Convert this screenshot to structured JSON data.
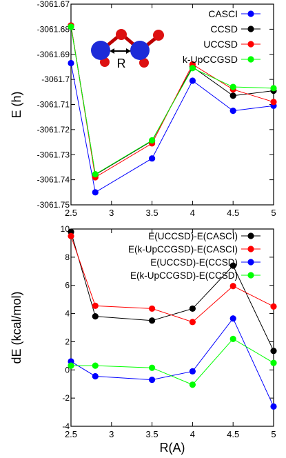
{
  "chart_data": [
    {
      "type": "line",
      "title": "",
      "xlabel": "",
      "ylabel": "E (h)",
      "xlim": [
        2.5,
        5
      ],
      "ylim": [
        -3061.75,
        -3061.67
      ],
      "xticks": [
        2.5,
        3,
        3.5,
        4,
        4.5,
        5
      ],
      "yticks": [
        -3061.75,
        -3061.74,
        -3061.73,
        -3061.72,
        -3061.71,
        -3061.7,
        -3061.69,
        -3061.68,
        -3061.67
      ],
      "x": [
        2.5,
        2.8,
        3.5,
        4.0,
        4.5,
        5.0
      ],
      "legend_position": "top-right",
      "inset_label": "R",
      "series": [
        {
          "name": "CASCI",
          "color": "#0000ff",
          "values": [
            -3061.6935,
            -3061.745,
            -3061.7315,
            -3061.7005,
            -3061.7125,
            -3061.7105
          ]
        },
        {
          "name": "CCSD",
          "color": "#000000",
          "values": [
            -3061.6785,
            -3061.738,
            -3061.7245,
            -3061.695,
            -3061.7065,
            -3061.7045
          ]
        },
        {
          "name": "UCCSD",
          "color": "#ff0000",
          "values": [
            -3061.6785,
            -3061.739,
            -3061.7255,
            -3061.694,
            -3061.704,
            -3061.709
          ]
        },
        {
          "name": "k-UpCCGSD",
          "color": "#00ff00",
          "values": [
            -3061.679,
            -3061.7378,
            -3061.7243,
            -3061.6955,
            -3061.703,
            -3061.7035
          ]
        }
      ]
    },
    {
      "type": "line",
      "title": "",
      "xlabel": "R(A)",
      "ylabel": "dE (kcal/mol)",
      "xlim": [
        2.5,
        5
      ],
      "ylim": [
        -4,
        10
      ],
      "xticks": [
        2.5,
        3,
        3.5,
        4,
        4.5,
        5
      ],
      "yticks": [
        -4,
        -2,
        0,
        2,
        4,
        6,
        8,
        10
      ],
      "x": [
        2.5,
        2.8,
        3.5,
        4.0,
        4.5,
        5.0
      ],
      "legend_position": "top-right",
      "series": [
        {
          "name": "E(UCCSD)-E(CASCI)",
          "color": "#000000",
          "values": [
            9.8,
            3.8,
            3.5,
            4.35,
            7.4,
            1.35
          ]
        },
        {
          "name": "E(k-UpCCGSD)-E(CASCI)",
          "color": "#ff0000",
          "values": [
            9.5,
            4.55,
            4.35,
            3.4,
            5.95,
            4.5
          ]
        },
        {
          "name": "E(UCCSD)-E(CCSD)",
          "color": "#0000ff",
          "values": [
            0.6,
            -0.45,
            -0.7,
            -0.1,
            3.65,
            -2.6
          ]
        },
        {
          "name": "E(k-UpCCGSD)-E(CCSD)",
          "color": "#00ff00",
          "values": [
            0.3,
            0.3,
            0.15,
            -1.05,
            2.2,
            0.5
          ]
        }
      ]
    }
  ]
}
